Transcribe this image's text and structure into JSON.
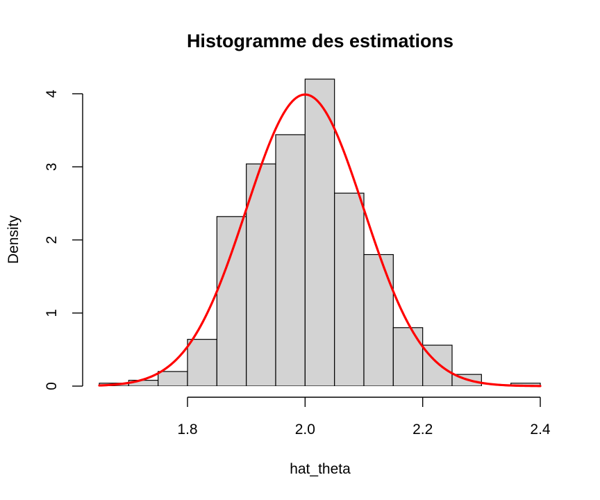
{
  "chart_data": {
    "type": "bar",
    "title": "Histogramme des estimations",
    "xlabel": "hat_theta",
    "ylabel": "Density",
    "xlim": [
      1.65,
      2.4
    ],
    "ylim": [
      0,
      4
    ],
    "x_ticks": [
      "1.8",
      "2.0",
      "2.2",
      "2.4"
    ],
    "y_ticks": [
      "0",
      "1",
      "2",
      "3",
      "4"
    ],
    "grid": false,
    "bins": [
      {
        "x0": 1.65,
        "x1": 1.7,
        "density": 0.04
      },
      {
        "x0": 1.7,
        "x1": 1.75,
        "density": 0.08
      },
      {
        "x0": 1.75,
        "x1": 1.8,
        "density": 0.2
      },
      {
        "x0": 1.8,
        "x1": 1.85,
        "density": 0.64
      },
      {
        "x0": 1.85,
        "x1": 1.9,
        "density": 2.32
      },
      {
        "x0": 1.9,
        "x1": 1.95,
        "density": 3.04
      },
      {
        "x0": 1.95,
        "x1": 2.0,
        "density": 3.44
      },
      {
        "x0": 2.0,
        "x1": 2.05,
        "density": 4.2
      },
      {
        "x0": 2.05,
        "x1": 2.1,
        "density": 2.64
      },
      {
        "x0": 2.1,
        "x1": 2.15,
        "density": 1.8
      },
      {
        "x0": 2.15,
        "x1": 2.2,
        "density": 0.8
      },
      {
        "x0": 2.2,
        "x1": 2.25,
        "density": 0.56
      },
      {
        "x0": 2.25,
        "x1": 2.3,
        "density": 0.16
      },
      {
        "x0": 2.3,
        "x1": 2.35,
        "density": 0.0
      },
      {
        "x0": 2.35,
        "x1": 2.4,
        "density": 0.04
      }
    ],
    "curve": {
      "type": "normal-density",
      "mean": 2.0,
      "sd": 0.1,
      "color": "#ff0000"
    },
    "bar_fill": "#d3d3d3",
    "bar_stroke": "#000000"
  }
}
